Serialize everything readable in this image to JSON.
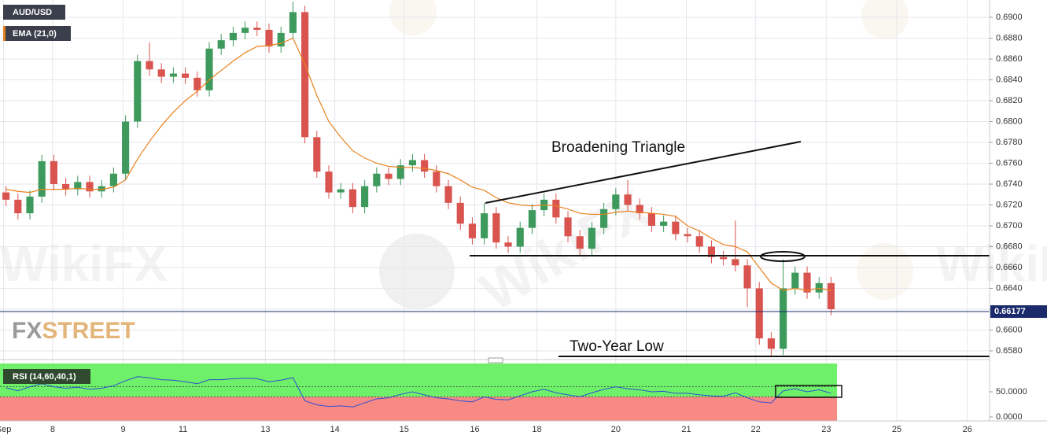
{
  "chart_data": {
    "type": "candlestick",
    "title": "AUD/USD",
    "up_color": "#3d9a5c",
    "down_color": "#d9534f",
    "x": [
      0.5,
      1.5,
      2.5,
      3.5,
      4.5,
      5.5,
      6.5,
      7.5,
      8.5,
      9.5,
      10.5,
      11.5,
      12.5,
      13.5,
      14.5,
      15.5,
      16.5,
      17.5,
      18.5,
      19.5,
      20.5,
      21.5,
      22.5,
      23.5,
      24.5,
      25.5,
      26.5,
      27.5,
      28.5,
      29.5,
      30.5,
      31.5,
      32.5,
      33.5,
      34.5,
      35.5,
      36.5,
      37.5,
      38.5,
      39.5,
      40.5,
      41.5,
      42.5,
      43.5,
      44.5,
      45.5,
      46.5,
      47.5,
      48.5,
      49.5,
      50.5,
      51.5,
      52.5,
      53.5,
      54.5,
      55.5,
      56.5,
      57.5,
      58.5,
      59.5,
      60.5,
      61.5,
      62.5,
      63.5,
      64.5,
      65.5,
      66.5,
      67.5,
      68.5,
      69.5
    ],
    "open": [
      0.6732,
      0.6725,
      0.6712,
      0.6728,
      0.6762,
      0.674,
      0.6735,
      0.6742,
      0.6733,
      0.6738,
      0.675,
      0.68,
      0.6858,
      0.685,
      0.6843,
      0.6846,
      0.6842,
      0.683,
      0.687,
      0.6878,
      0.6885,
      0.689,
      0.6888,
      0.6872,
      0.6885,
      0.6905,
      0.6785,
      0.6752,
      0.6732,
      0.6735,
      0.6718,
      0.6738,
      0.675,
      0.6745,
      0.6758,
      0.6763,
      0.6752,
      0.6738,
      0.6722,
      0.6702,
      0.6688,
      0.6712,
      0.6684,
      0.668,
      0.6698,
      0.6715,
      0.6725,
      0.6708,
      0.669,
      0.6678,
      0.6698,
      0.6716,
      0.673,
      0.672,
      0.6712,
      0.67,
      0.6704,
      0.6692,
      0.669,
      0.668,
      0.667,
      0.6668,
      0.6662,
      0.664,
      0.6592,
      0.6582,
      0.664,
      0.6655,
      0.6636,
      0.6645
    ],
    "high": [
      0.6738,
      0.6731,
      0.6734,
      0.6768,
      0.6768,
      0.6746,
      0.6748,
      0.6748,
      0.6744,
      0.6756,
      0.6806,
      0.6864,
      0.6876,
      0.6856,
      0.6852,
      0.6852,
      0.6848,
      0.6876,
      0.6884,
      0.6891,
      0.6896,
      0.6896,
      0.6894,
      0.6891,
      0.6915,
      0.6911,
      0.6791,
      0.6758,
      0.6741,
      0.6741,
      0.6744,
      0.6756,
      0.6756,
      0.6764,
      0.6769,
      0.6769,
      0.6758,
      0.6744,
      0.6728,
      0.6708,
      0.6722,
      0.6718,
      0.669,
      0.6704,
      0.6721,
      0.6731,
      0.6731,
      0.6714,
      0.6696,
      0.6704,
      0.6722,
      0.6736,
      0.6744,
      0.6726,
      0.6718,
      0.671,
      0.671,
      0.6698,
      0.6696,
      0.6686,
      0.6676,
      0.6705,
      0.6668,
      0.6646,
      0.6598,
      0.6668,
      0.6661,
      0.6661,
      0.6651,
      0.6651
    ],
    "low": [
      0.6719,
      0.6706,
      0.6706,
      0.6722,
      0.6734,
      0.6729,
      0.6729,
      0.6727,
      0.6727,
      0.6732,
      0.6744,
      0.6794,
      0.6844,
      0.6837,
      0.6837,
      0.6836,
      0.6824,
      0.6824,
      0.6864,
      0.6872,
      0.6879,
      0.6882,
      0.6866,
      0.6866,
      0.6879,
      0.6779,
      0.6746,
      0.6726,
      0.6726,
      0.6712,
      0.6712,
      0.6732,
      0.6739,
      0.6739,
      0.6752,
      0.6746,
      0.6732,
      0.6716,
      0.6696,
      0.6682,
      0.6682,
      0.6678,
      0.6674,
      0.6674,
      0.6692,
      0.6709,
      0.6702,
      0.6684,
      0.6672,
      0.6672,
      0.6692,
      0.671,
      0.6714,
      0.6706,
      0.6694,
      0.6694,
      0.6686,
      0.6684,
      0.6674,
      0.6664,
      0.6662,
      0.6656,
      0.6622,
      0.6586,
      0.6575,
      0.6576,
      0.6634,
      0.663,
      0.663,
      0.6614
    ],
    "close": [
      0.6725,
      0.6712,
      0.6728,
      0.6762,
      0.674,
      0.6735,
      0.6742,
      0.6733,
      0.6738,
      0.675,
      0.68,
      0.6858,
      0.685,
      0.6843,
      0.6846,
      0.6842,
      0.683,
      0.687,
      0.6878,
      0.6885,
      0.689,
      0.6888,
      0.6872,
      0.6885,
      0.6905,
      0.6785,
      0.6752,
      0.6732,
      0.6735,
      0.6718,
      0.6738,
      0.675,
      0.6745,
      0.6758,
      0.6763,
      0.6752,
      0.6738,
      0.6722,
      0.6702,
      0.6688,
      0.6712,
      0.6684,
      0.668,
      0.6698,
      0.6715,
      0.6725,
      0.6708,
      0.669,
      0.6678,
      0.6698,
      0.6716,
      0.673,
      0.672,
      0.6712,
      0.67,
      0.6704,
      0.6692,
      0.669,
      0.668,
      0.667,
      0.6668,
      0.6662,
      0.664,
      0.6592,
      0.6582,
      0.664,
      0.6655,
      0.6636,
      0.6645,
      0.662
    ],
    "ema": {
      "name": "EMA (21,0)",
      "color": "#e8821e",
      "values": [
        0.6735,
        0.6733,
        0.6732,
        0.6735,
        0.6735,
        0.6735,
        0.6736,
        0.6735,
        0.6735,
        0.6737,
        0.6744,
        0.6764,
        0.6781,
        0.6796,
        0.6809,
        0.682,
        0.6829,
        0.684,
        0.6849,
        0.6858,
        0.6866,
        0.6872,
        0.6873,
        0.6875,
        0.688,
        0.6855,
        0.6825,
        0.68,
        0.6785,
        0.6772,
        0.6765,
        0.676,
        0.6757,
        0.6756,
        0.6756,
        0.6755,
        0.6753,
        0.675,
        0.6744,
        0.6737,
        0.6734,
        0.6727,
        0.6722,
        0.672,
        0.6719,
        0.672,
        0.6719,
        0.6716,
        0.6712,
        0.6711,
        0.6711,
        0.6713,
        0.6714,
        0.6713,
        0.6712,
        0.6711,
        0.6709,
        0.67,
        0.6695,
        0.6688,
        0.6682,
        0.668,
        0.6675,
        0.666,
        0.6645,
        0.6638,
        0.664,
        0.6638,
        0.664,
        0.6638
      ]
    },
    "xlim": [
      0,
      82.76
    ],
    "xticks": [
      {
        "value": 0.3,
        "label": "Sep"
      },
      {
        "value": 4.4,
        "label": "8"
      },
      {
        "value": 10.3,
        "label": "9"
      },
      {
        "value": 15.3,
        "label": "11"
      },
      {
        "value": 22.2,
        "label": "13"
      },
      {
        "value": 28,
        "label": "14"
      },
      {
        "value": 33.8,
        "label": "15"
      },
      {
        "value": 39.7,
        "label": "16"
      },
      {
        "value": 44.9,
        "label": "18"
      },
      {
        "value": 51.5,
        "label": "20"
      },
      {
        "value": 57.4,
        "label": "21"
      },
      {
        "value": 63.2,
        "label": "22"
      },
      {
        "value": 69.1,
        "label": "23"
      },
      {
        "value": 75,
        "label": "25"
      },
      {
        "value": 80.9,
        "label": "26"
      }
    ],
    "ylim": [
      0.65732,
      0.69166
    ],
    "yticks": [
      {
        "value": 0.658,
        "label": "0.6580"
      },
      {
        "value": 0.66,
        "label": "0.6600"
      },
      {
        "value": 0.662,
        "label": "0.6620"
      },
      {
        "value": 0.664,
        "label": "0.6640"
      },
      {
        "value": 0.666,
        "label": "0.6660"
      },
      {
        "value": 0.668,
        "label": "0.6680"
      },
      {
        "value": 0.67,
        "label": "0.6700"
      },
      {
        "value": 0.672,
        "label": "0.6720"
      },
      {
        "value": 0.674,
        "label": "0.6740"
      },
      {
        "value": 0.676,
        "label": "0.6760"
      },
      {
        "value": 0.678,
        "label": "0.6780"
      },
      {
        "value": 0.68,
        "label": "0.6800"
      },
      {
        "value": 0.682,
        "label": "0.6820"
      },
      {
        "value": 0.684,
        "label": "0.6840"
      },
      {
        "value": 0.686,
        "label": "0.6860"
      },
      {
        "value": 0.688,
        "label": "0.6880"
      },
      {
        "value": 0.69,
        "label": "0.6900"
      }
    ],
    "grid": true,
    "last_price": {
      "value": 0.66177,
      "label": "0.66177"
    },
    "annotations": [
      "Broadening Triangle",
      "Two-Year Low"
    ],
    "rsi": {
      "name": "RSI (14,60,40,1)",
      "color": "#2f4fd0",
      "values": [
        58,
        52,
        60,
        66,
        60,
        57,
        59,
        55,
        57,
        62,
        72,
        80,
        78,
        74,
        73,
        70,
        66,
        74,
        74,
        76,
        77,
        76,
        70,
        73,
        78,
        32,
        24,
        21,
        22,
        20,
        28,
        36,
        38,
        45,
        50,
        44,
        38,
        36,
        32,
        30,
        40,
        35,
        34,
        42,
        50,
        55,
        48,
        44,
        40,
        48,
        55,
        60,
        56,
        54,
        50,
        51,
        47,
        47,
        44,
        42,
        41,
        48,
        38,
        30,
        28,
        52,
        56,
        50,
        54,
        47
      ],
      "ylim": [
        -7.8,
        106.25
      ],
      "yticks": [
        {
          "value": 50,
          "label": "50.0000"
        },
        {
          "value": 0,
          "label": "0.0000"
        }
      ],
      "levels": [
        60,
        40
      ]
    },
    "watermarks": {
      "brand": "WikiFX",
      "fx": "FX",
      "street": "STREET"
    }
  }
}
